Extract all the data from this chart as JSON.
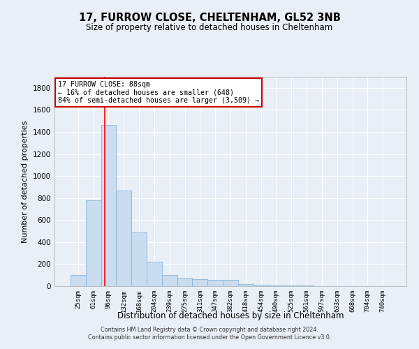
{
  "title": "17, FURROW CLOSE, CHELTENHAM, GL52 3NB",
  "subtitle": "Size of property relative to detached houses in Cheltenham",
  "xlabel": "Distribution of detached houses by size in Cheltenham",
  "ylabel": "Number of detached properties",
  "property_label": "17 FURROW CLOSE: 88sqm",
  "annotation_line1": "← 16% of detached houses are smaller (648)",
  "annotation_line2": "84% of semi-detached houses are larger (3,509) →",
  "footer_line1": "Contains HM Land Registry data © Crown copyright and database right 2024.",
  "footer_line2": "Contains public sector information licensed under the Open Government Licence v3.0.",
  "bin_labels": [
    "25sqm",
    "61sqm",
    "96sqm",
    "132sqm",
    "168sqm",
    "204sqm",
    "239sqm",
    "275sqm",
    "311sqm",
    "347sqm",
    "382sqm",
    "418sqm",
    "454sqm",
    "490sqm",
    "525sqm",
    "561sqm",
    "597sqm",
    "633sqm",
    "668sqm",
    "704sqm",
    "740sqm"
  ],
  "bar_values": [
    100,
    780,
    1460,
    870,
    490,
    220,
    100,
    75,
    65,
    60,
    55,
    20,
    10,
    8,
    5,
    4,
    3,
    2,
    2,
    1,
    2
  ],
  "bar_color": "#c9dcf0",
  "bar_edge_color": "#8ab4d8",
  "ylim": [
    0,
    1900
  ],
  "yticks": [
    0,
    200,
    400,
    600,
    800,
    1000,
    1200,
    1400,
    1600,
    1800
  ],
  "red_line_x": 1.77,
  "background_color": "#e8eff7",
  "grid_color": "#ffffff",
  "annotation_box_edge": "#cc0000"
}
